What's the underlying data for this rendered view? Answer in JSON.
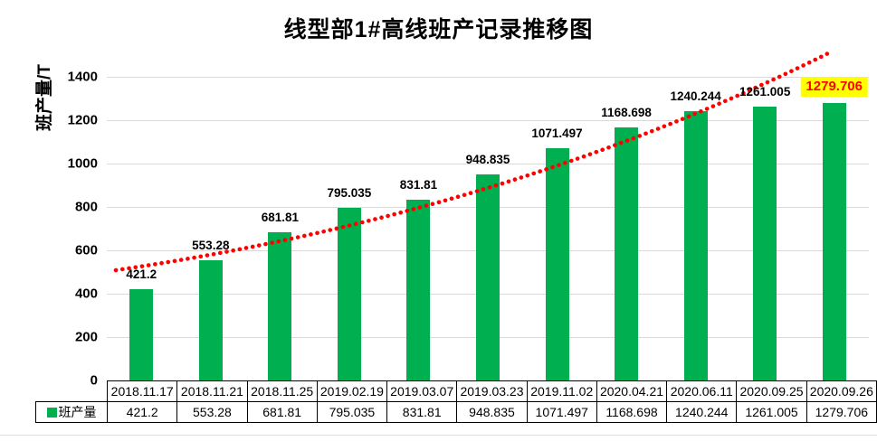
{
  "chart_data": {
    "type": "bar",
    "title": "线型部1#高线班产记录推移图",
    "ylabel": "班产量/T",
    "categories": [
      "2018.11.17",
      "2018.11.21",
      "2018.11.25",
      "2019.02.19",
      "2019.03.07",
      "2019.03.23",
      "2019.11.02",
      "2020.04.21",
      "2020.06.11",
      "2020.09.25",
      "2020.09.26"
    ],
    "series": [
      {
        "name": "班产量",
        "values": [
          421.2,
          553.28,
          681.81,
          795.035,
          831.81,
          948.835,
          1071.497,
          1168.698,
          1240.244,
          1261.005,
          1279.706
        ]
      }
    ],
    "value_labels": [
      "421.2",
      "553.28",
      "681.81",
      "795.035",
      "831.81",
      "948.835",
      "1071.497",
      "1168.698",
      "1240.244",
      "1261.005",
      "1279.706"
    ],
    "yticks": [
      0,
      200,
      400,
      600,
      800,
      1000,
      1200,
      1400
    ],
    "ylim": [
      0,
      1500
    ],
    "grid": "horizontal",
    "legend_position": "table-left",
    "trendline": {
      "style": "dotted",
      "color": "#FF0000"
    },
    "highlight_last_label": {
      "background": "#FFFF00",
      "text_color": "#FF0000"
    },
    "colors": {
      "bar": "#00B050",
      "gridline": "#d9d9d9",
      "axis": "#000000",
      "label": "#000000"
    }
  }
}
